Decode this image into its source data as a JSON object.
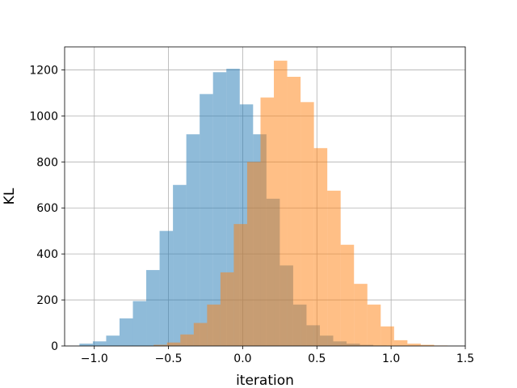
{
  "chart_data": {
    "type": "bar",
    "title": "",
    "xlabel": "iteration",
    "ylabel": "KL",
    "xlim": [
      -1.2,
      1.5
    ],
    "ylim": [
      0,
      1300
    ],
    "xticks": [
      -1.0,
      -0.5,
      0.0,
      0.5,
      1.0,
      1.5
    ],
    "xtick_labels": [
      "−1.0",
      "−0.5",
      "0.0",
      "0.5",
      "1.0",
      "1.5"
    ],
    "yticks": [
      0,
      200,
      400,
      600,
      800,
      1000,
      1200
    ],
    "ytick_labels": [
      "0",
      "200",
      "400",
      "600",
      "800",
      "1000",
      "1200"
    ],
    "grid": true,
    "legend": null,
    "series": [
      {
        "color": "#1f77b4",
        "alpha": 0.5,
        "bin_edges": [
          -1.1,
          -1.01,
          -0.92,
          -0.83,
          -0.74,
          -0.65,
          -0.56,
          -0.47,
          -0.38,
          -0.29,
          -0.2,
          -0.11,
          -0.02,
          0.07,
          0.16,
          0.25,
          0.34,
          0.43,
          0.52,
          0.61,
          0.7,
          0.79,
          0.88,
          0.97
        ],
        "values": [
          10,
          20,
          45,
          120,
          195,
          330,
          500,
          700,
          920,
          1095,
          1190,
          1205,
          1050,
          920,
          640,
          350,
          180,
          90,
          45,
          20,
          10,
          5,
          2
        ]
      },
      {
        "color": "#ff7f0e",
        "alpha": 0.5,
        "bin_edges": [
          -0.6,
          -0.51,
          -0.42,
          -0.33,
          -0.24,
          -0.15,
          -0.06,
          0.03,
          0.12,
          0.21,
          0.3,
          0.39,
          0.48,
          0.57,
          0.66,
          0.75,
          0.84,
          0.93,
          1.02,
          1.11,
          1.2,
          1.29,
          1.38
        ],
        "values": [
          5,
          15,
          50,
          100,
          180,
          320,
          530,
          800,
          1080,
          1240,
          1170,
          1060,
          860,
          675,
          440,
          270,
          180,
          85,
          25,
          10,
          5,
          2
        ]
      }
    ]
  }
}
